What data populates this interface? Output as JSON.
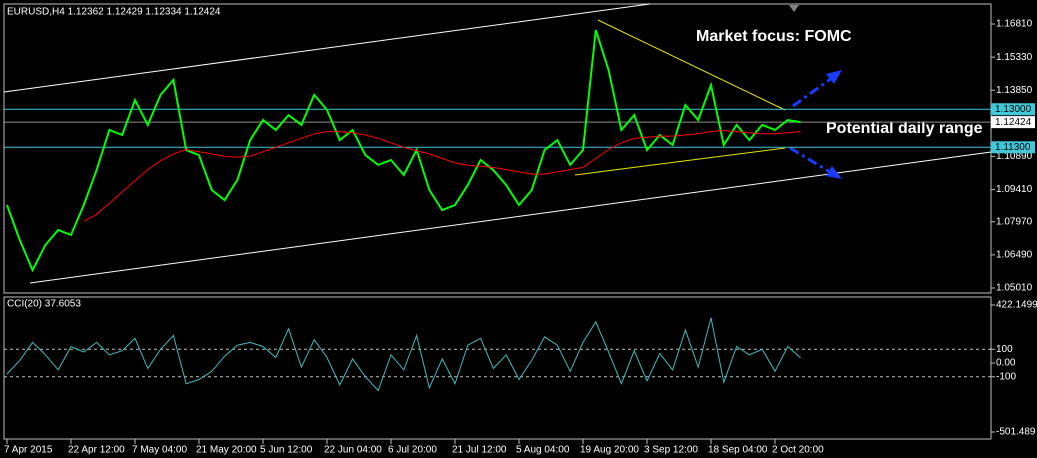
{
  "chart_data": [
    {
      "type": "line",
      "title": "EURUSD,H4  1.12362 1.12429 1.12334 1.12424",
      "annotations": [
        "Market focus: FOMC",
        "Potential daily range"
      ],
      "categories": [
        "7 Apr 2015",
        null,
        null,
        null,
        null,
        "22 Apr 12:00",
        null,
        null,
        null,
        null,
        "7 May 04:00",
        null,
        null,
        null,
        null,
        "21 May 20:00",
        null,
        null,
        null,
        null,
        "5 Jun 12:00",
        null,
        null,
        null,
        null,
        "22 Jun 04:00",
        null,
        null,
        null,
        null,
        "6 Jul 20:00",
        null,
        null,
        null,
        null,
        "21 Jul 12:00",
        null,
        null,
        null,
        null,
        "5 Aug 04:00",
        null,
        null,
        null,
        null,
        "19 Aug 20:00",
        null,
        null,
        null,
        null,
        "3 Sep 12:00",
        null,
        null,
        null,
        null,
        "18 Sep 04:00",
        null,
        null,
        null,
        null,
        "2 Oct 20:00",
        null,
        null
      ],
      "series": [
        {
          "color": "#00ff00",
          "values": [
            1.0872,
            1.0715,
            1.0581,
            1.0693,
            1.076,
            1.0738,
            1.0872,
            1.1028,
            1.1207,
            1.1185,
            1.1341,
            1.123,
            1.1364,
            1.1431,
            1.1118,
            1.1095,
            1.0939,
            1.0894,
            1.0984,
            1.1162,
            1.1252,
            1.1207,
            1.1274,
            1.123,
            1.1364,
            1.1297,
            1.1162,
            1.1207,
            1.1095,
            1.1051,
            1.1073,
            1.1006,
            1.1118,
            1.0939,
            1.0849,
            1.0872,
            1.0961,
            1.1073,
            1.1028,
            1.0961,
            1.0872,
            1.0939,
            1.1118,
            1.1162,
            1.1051,
            1.1118,
            1.1654,
            1.1475,
            1.1207,
            1.1274,
            1.1118,
            1.1185,
            1.114,
            1.1319,
            1.1252,
            1.1408,
            1.114,
            1.123,
            1.1162,
            1.123,
            1.1207,
            1.1252,
            1.12424
          ]
        },
        {
          "color": "#ff0000",
          "values": [
            null,
            null,
            null,
            null,
            null,
            null,
            1.08,
            1.083,
            1.088,
            1.093,
            1.098,
            1.103,
            1.107,
            1.11,
            1.112,
            1.111,
            1.11,
            1.109,
            1.1085,
            1.109,
            1.111,
            1.113,
            1.115,
            1.117,
            1.119,
            1.12,
            1.12,
            1.1195,
            1.1185,
            1.117,
            1.115,
            1.113,
            1.1115,
            1.11,
            1.108,
            1.106,
            1.105,
            1.1045,
            1.104,
            1.103,
            1.102,
            1.101,
            1.101,
            1.102,
            1.103,
            1.104,
            1.108,
            1.112,
            1.115,
            1.117,
            1.1175,
            1.118,
            1.118,
            1.1185,
            1.119,
            1.12,
            1.1205,
            1.12,
            1.1195,
            1.119,
            1.119,
            1.1195,
            1.12
          ]
        }
      ],
      "ylim": [
        1.0483,
        1.1766
      ],
      "yticks": [
        {
          "value": 1.1681,
          "label": "1.16810"
        },
        {
          "value": 1.1533,
          "label": "1.15330"
        },
        {
          "value": 1.1385,
          "label": "1.13850"
        },
        {
          "value": 1.1089,
          "label": "1.10890"
        },
        {
          "value": 1.0941,
          "label": "1.09410"
        },
        {
          "value": 1.0797,
          "label": "1.07970"
        },
        {
          "value": 1.0649,
          "label": "1.06490"
        },
        {
          "value": 1.0501,
          "label": "1.05010"
        }
      ],
      "levels": [
        {
          "value": 1.13,
          "label": "1.13000"
        },
        {
          "value": 1.113,
          "label": "1.11300"
        }
      ],
      "level_color": "#40c8d8",
      "current_price": {
        "value": 1.12424,
        "label": "1.12424"
      }
    },
    {
      "type": "line",
      "title": "CCI(20) 37.6053",
      "series": [
        {
          "color": "#3fbcbc",
          "values": [
            -80,
            20,
            150,
            60,
            -50,
            120,
            80,
            150,
            60,
            90,
            180,
            -40,
            100,
            200,
            -150,
            -120,
            -60,
            50,
            130,
            150,
            120,
            40,
            250,
            -30,
            170,
            40,
            -160,
            30,
            -100,
            -200,
            60,
            -50,
            200,
            -180,
            30,
            -150,
            130,
            180,
            -40,
            60,
            -120,
            20,
            190,
            130,
            -60,
            150,
            300,
            80,
            -150,
            90,
            -130,
            70,
            -50,
            240,
            -30,
            330,
            -140,
            120,
            60,
            100,
            -60,
            120,
            37.6053
          ]
        }
      ],
      "ylim": [
        -501.489,
        422.1499
      ],
      "yticks": [
        422.1499,
        100,
        {
          "value": 0,
          "label": "0.00"
        },
        -100,
        -501.489
      ],
      "levels": [
        100,
        -100
      ]
    }
  ]
}
